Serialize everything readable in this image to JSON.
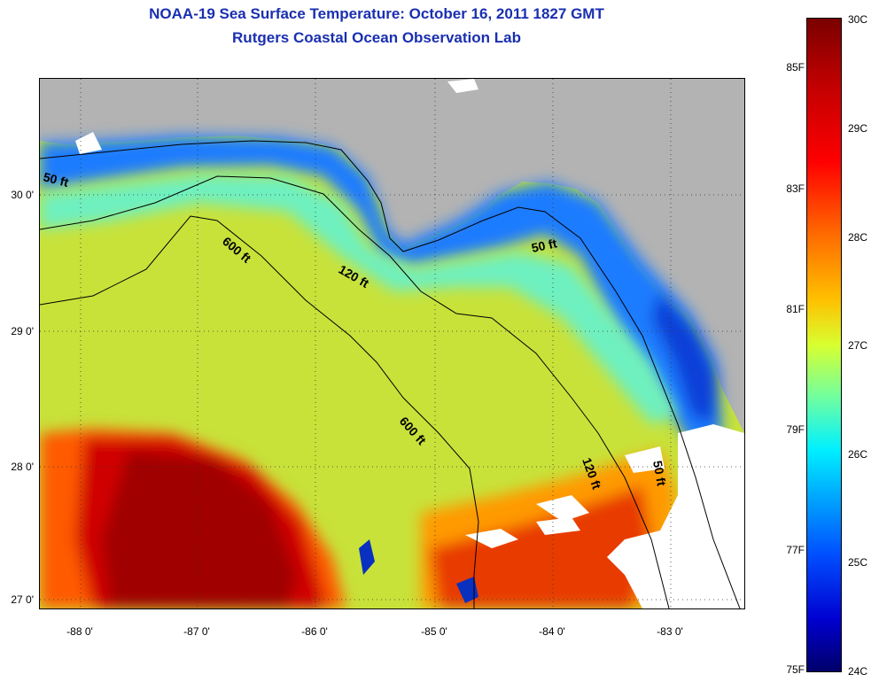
{
  "header": {
    "title": "NOAA-19 Sea Surface Temperature:  October 16, 2011 1827 GMT",
    "subtitle": "Rutgers Coastal Ocean Observation Lab"
  },
  "map": {
    "y_ticks": [
      "30 0'",
      "29 0'",
      "28 0'",
      "27 0'"
    ],
    "x_ticks": [
      "-88 0'",
      "-87 0'",
      "-86 0'",
      "-85 0'",
      "-84 0'",
      "-83 0'"
    ],
    "contour_labels": [
      "50 ft",
      "600 ft",
      "120 ft",
      "50 ft",
      "600 ft",
      "120 ft",
      "50 ft"
    ],
    "colors": {
      "land": "#b3b3b3",
      "cloud": "#ffffff",
      "warm": "#b00000",
      "cool": "#0a50ff",
      "mid": "#c8e840"
    }
  },
  "colorbar": {
    "fahrenheit_labels": [
      "85F",
      "83F",
      "81F",
      "79F",
      "77F",
      "75F"
    ],
    "celsius_labels": [
      "30C",
      "29C",
      "28C",
      "27C",
      "26C",
      "25C",
      "24C"
    ]
  }
}
